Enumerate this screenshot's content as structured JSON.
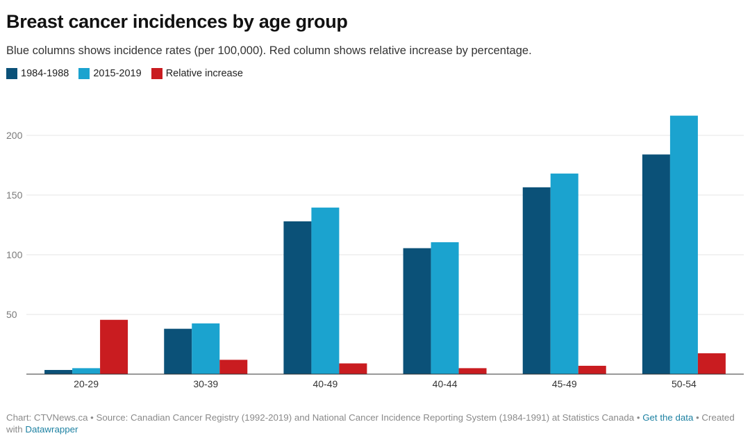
{
  "header": {
    "title": "Breast cancer incidences by age group",
    "subtitle": "Blue columns shows incidence rates (per 100,000). Red column shows relative increase by percentage."
  },
  "legend": [
    {
      "label": "1984-1988",
      "color": "#0b5178"
    },
    {
      "label": "2015-2019",
      "color": "#1ba3cf"
    },
    {
      "label": "Relative increase",
      "color": "#c91c20"
    }
  ],
  "chart_data": {
    "type": "bar",
    "categories": [
      "20-29",
      "30-39",
      "40-49",
      "40-44",
      "45-49",
      "50-54"
    ],
    "series": [
      {
        "name": "1984-1988",
        "color": "#0b5178",
        "values": [
          3.5,
          38,
          128,
          105.5,
          156.5,
          184
        ]
      },
      {
        "name": "2015-2019",
        "color": "#1ba3cf",
        "values": [
          5,
          42.5,
          139.5,
          110.5,
          168,
          216.5
        ]
      },
      {
        "name": "Relative increase",
        "color": "#c91c20",
        "values": [
          45.5,
          12,
          9,
          5,
          7,
          17.5
        ]
      }
    ],
    "yticks": [
      50,
      100,
      150,
      200
    ],
    "ylim": [
      0,
      220
    ],
    "grid": true
  },
  "footer": {
    "prefix": "Chart: CTVNews.ca • Source: Canadian Cancer Registry (1992-2019) and National Cancer Incidence Reporting System (1984-1991) at Statistics Canada • ",
    "link_get_data": "Get the data",
    "middle": " • Created with ",
    "link_datawrapper": "Datawrapper"
  }
}
